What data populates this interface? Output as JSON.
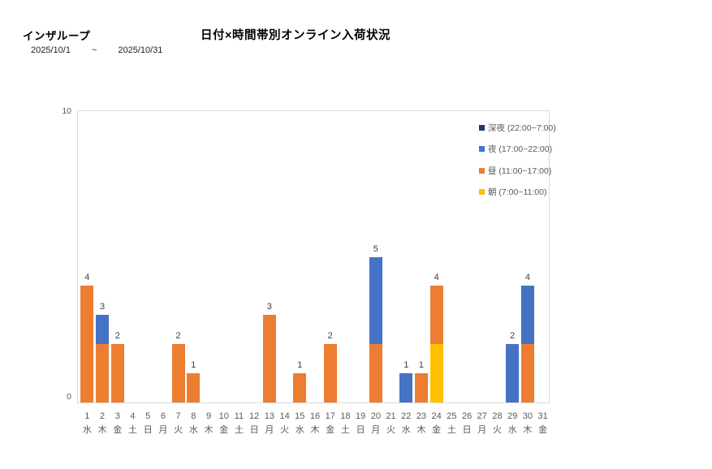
{
  "header": {
    "brand": "インザループ",
    "date_from": "2025/10/1",
    "date_separator": "~",
    "date_to": "2025/10/31",
    "chart_title": "日付×時間帯別オンライン入荷状況"
  },
  "chart_data": {
    "type": "bar",
    "stacked": true,
    "title": "日付×時間帯別オンライン入荷状況",
    "ylim": [
      0,
      10
    ],
    "y_ticks": [
      0,
      10
    ],
    "grid": false,
    "legend_position": "top-right",
    "categories": [
      {
        "day": "1",
        "weekday": "水"
      },
      {
        "day": "2",
        "weekday": "木"
      },
      {
        "day": "3",
        "weekday": "金"
      },
      {
        "day": "4",
        "weekday": "土"
      },
      {
        "day": "5",
        "weekday": "日"
      },
      {
        "day": "6",
        "weekday": "月"
      },
      {
        "day": "7",
        "weekday": "火"
      },
      {
        "day": "8",
        "weekday": "水"
      },
      {
        "day": "9",
        "weekday": "木"
      },
      {
        "day": "10",
        "weekday": "金"
      },
      {
        "day": "11",
        "weekday": "土"
      },
      {
        "day": "12",
        "weekday": "日"
      },
      {
        "day": "13",
        "weekday": "月"
      },
      {
        "day": "14",
        "weekday": "火"
      },
      {
        "day": "15",
        "weekday": "水"
      },
      {
        "day": "16",
        "weekday": "木"
      },
      {
        "day": "17",
        "weekday": "金"
      },
      {
        "day": "18",
        "weekday": "土"
      },
      {
        "day": "19",
        "weekday": "日"
      },
      {
        "day": "20",
        "weekday": "月"
      },
      {
        "day": "21",
        "weekday": "火"
      },
      {
        "day": "22",
        "weekday": "水"
      },
      {
        "day": "23",
        "weekday": "木"
      },
      {
        "day": "24",
        "weekday": "金"
      },
      {
        "day": "25",
        "weekday": "土"
      },
      {
        "day": "26",
        "weekday": "日"
      },
      {
        "day": "27",
        "weekday": "月"
      },
      {
        "day": "28",
        "weekday": "火"
      },
      {
        "day": "29",
        "weekday": "水"
      },
      {
        "day": "30",
        "weekday": "木"
      },
      {
        "day": "31",
        "weekday": "金"
      }
    ],
    "series": [
      {
        "name": "朝 (7:00~11:00)",
        "color": "#FFC000",
        "values": [
          0,
          0,
          0,
          0,
          0,
          0,
          0,
          0,
          0,
          0,
          0,
          0,
          0,
          0,
          0,
          0,
          0,
          0,
          0,
          0,
          0,
          0,
          0,
          2,
          0,
          0,
          0,
          0,
          0,
          0,
          0
        ]
      },
      {
        "name": "昼 (11:00~17:00)",
        "color": "#ED7D31",
        "values": [
          4,
          2,
          2,
          0,
          0,
          0,
          2,
          1,
          0,
          0,
          0,
          0,
          3,
          0,
          1,
          0,
          2,
          0,
          0,
          2,
          0,
          0,
          1,
          2,
          0,
          0,
          0,
          0,
          0,
          2,
          0
        ]
      },
      {
        "name": "夜 (17:00~22:00)",
        "color": "#4472C4",
        "values": [
          0,
          1,
          0,
          0,
          0,
          0,
          0,
          0,
          0,
          0,
          0,
          0,
          0,
          0,
          0,
          0,
          0,
          0,
          0,
          3,
          0,
          1,
          0,
          0,
          0,
          0,
          0,
          0,
          2,
          2,
          0
        ]
      },
      {
        "name": "深夜 (22:00~7:00)",
        "color": "#203864",
        "values": [
          0,
          0,
          0,
          0,
          0,
          0,
          0,
          0,
          0,
          0,
          0,
          0,
          0,
          0,
          0,
          0,
          0,
          0,
          0,
          0,
          0,
          0,
          0,
          0,
          0,
          0,
          0,
          0,
          0,
          0,
          0
        ]
      }
    ],
    "totals": [
      4,
      3,
      2,
      0,
      0,
      0,
      2,
      1,
      0,
      0,
      0,
      0,
      3,
      0,
      1,
      0,
      2,
      0,
      0,
      5,
      0,
      1,
      1,
      4,
      0,
      0,
      0,
      0,
      2,
      4,
      0
    ],
    "legend": [
      {
        "label": "深夜 (22:00~7:00)",
        "color": "#203864"
      },
      {
        "label": "夜 (17:00~22:00)",
        "color": "#4472C4"
      },
      {
        "label": "昼 (11:00~17:00)",
        "color": "#ED7D31"
      },
      {
        "label": "朝 (7:00~11:00)",
        "color": "#FFC000"
      }
    ],
    "colors": {
      "morning": "#FFC000",
      "daytime": "#ED7D31",
      "evening": "#4472C4",
      "late_night": "#203864",
      "axis_text": "#595959",
      "value_label": "#404040",
      "plot_border": "#D9D9D9"
    }
  }
}
